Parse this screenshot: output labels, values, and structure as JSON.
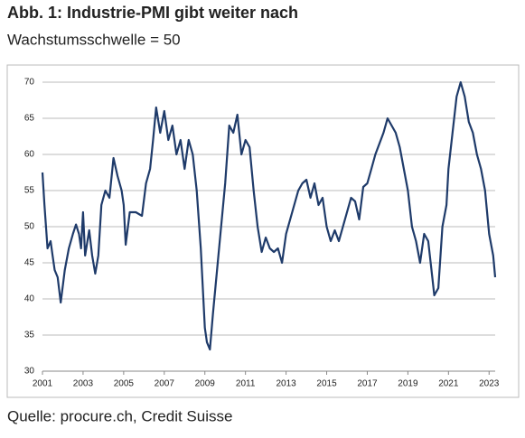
{
  "chart_data": {
    "type": "line",
    "title": "Abb. 1: Industrie-PMI gibt weiter nach",
    "subtitle": "Wachstumsschwelle = 50",
    "source": "Quelle: procure.ch, Credit Suisse",
    "x": [
      2001.0,
      2001.1,
      2001.25,
      2001.4,
      2001.5,
      2001.6,
      2001.75,
      2001.9,
      2002.1,
      2002.3,
      2002.5,
      2002.65,
      2002.8,
      2002.9,
      2003.0,
      2003.1,
      2003.3,
      2003.45,
      2003.6,
      2003.75,
      2003.9,
      2004.1,
      2004.3,
      2004.5,
      2004.7,
      2004.9,
      2005.0,
      2005.1,
      2005.3,
      2005.6,
      2005.9,
      2006.1,
      2006.3,
      2006.45,
      2006.6,
      2006.8,
      2007.0,
      2007.2,
      2007.4,
      2007.6,
      2007.8,
      2008.0,
      2008.2,
      2008.4,
      2008.6,
      2008.8,
      2009.0,
      2009.1,
      2009.25,
      2009.4,
      2009.6,
      2009.8,
      2010.0,
      2010.2,
      2010.4,
      2010.6,
      2010.8,
      2011.0,
      2011.2,
      2011.4,
      2011.6,
      2011.8,
      2012.0,
      2012.2,
      2012.4,
      2012.6,
      2012.8,
      2013.0,
      2013.2,
      2013.4,
      2013.6,
      2013.8,
      2014.0,
      2014.2,
      2014.4,
      2014.6,
      2014.8,
      2015.0,
      2015.2,
      2015.4,
      2015.6,
      2015.8,
      2016.0,
      2016.2,
      2016.4,
      2016.6,
      2016.8,
      2017.0,
      2017.2,
      2017.4,
      2017.6,
      2017.8,
      2018.0,
      2018.2,
      2018.4,
      2018.6,
      2018.8,
      2019.0,
      2019.2,
      2019.4,
      2019.6,
      2019.8,
      2020.0,
      2020.2,
      2020.3,
      2020.5,
      2020.7,
      2020.9,
      2021.0,
      2021.2,
      2021.4,
      2021.6,
      2021.8,
      2022.0,
      2022.2,
      2022.4,
      2022.6,
      2022.8,
      2023.0,
      2023.2,
      2023.3
    ],
    "series": [
      {
        "name": "Industrie-PMI",
        "color": "#1f3b6a",
        "values": [
          57.5,
          53,
          47,
          48,
          46,
          44,
          43,
          39.5,
          44,
          47,
          49,
          50.3,
          49,
          47,
          52,
          46,
          49.5,
          46,
          43.5,
          46,
          53,
          55,
          54,
          59.5,
          57,
          55,
          53,
          47.5,
          52,
          52,
          51.5,
          56,
          58,
          62,
          66.5,
          63,
          66,
          62,
          64,
          60,
          62,
          58,
          62,
          60,
          55,
          47,
          36,
          34,
          33,
          38,
          44,
          50,
          56,
          64,
          63,
          65.5,
          60,
          62,
          61,
          55,
          50,
          46.5,
          48.5,
          47,
          46.5,
          47,
          45,
          49,
          51,
          53,
          55,
          56,
          56.5,
          54,
          56,
          53,
          54,
          50,
          48,
          49.5,
          48,
          50,
          52,
          54,
          53.5,
          51,
          55.5,
          56,
          58,
          60,
          61.5,
          63,
          65,
          64,
          63,
          61,
          58,
          55,
          50,
          48,
          45,
          49,
          48,
          43,
          40.5,
          41.5,
          50,
          53,
          58,
          63,
          68,
          70,
          68,
          64.5,
          63,
          60,
          58,
          55,
          49,
          46,
          43
        ]
      }
    ],
    "xlim": [
      2001,
      2023.3
    ],
    "xticks": [
      2001,
      2003,
      2005,
      2007,
      2009,
      2011,
      2013,
      2015,
      2017,
      2019,
      2021,
      2023
    ],
    "ylim": [
      30,
      70
    ],
    "yticks": [
      30,
      35,
      40,
      45,
      50,
      55,
      60,
      65,
      70
    ],
    "grid": true
  }
}
